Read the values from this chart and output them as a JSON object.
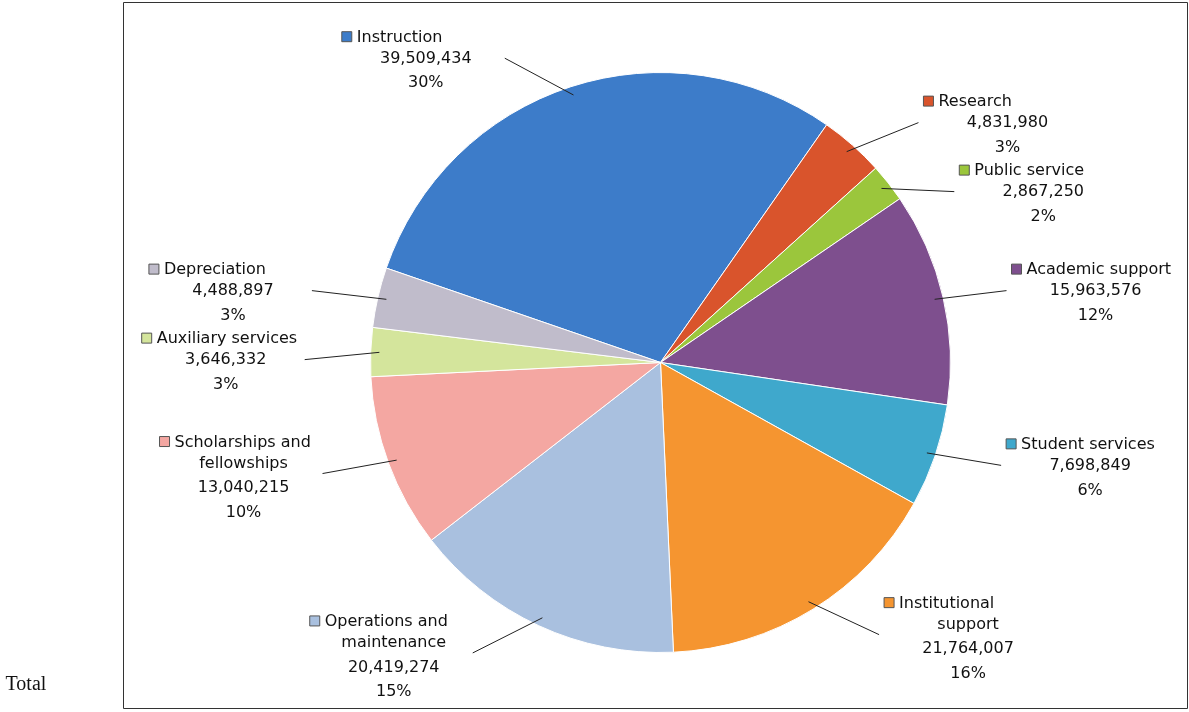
{
  "chart_data": {
    "type": "pie",
    "categories": [
      "Instruction",
      "Research",
      "Public service",
      "Academic support",
      "Student services",
      "Institutional support",
      "Operations and maintenance",
      "Scholarships and fellowships",
      "Auxiliary services",
      "Depreciation"
    ],
    "values": [
      39509434,
      4831980,
      2867250,
      15963576,
      7698849,
      21764007,
      20419274,
      13040215,
      3646332,
      4488897
    ],
    "colors": [
      "#3d7cc9",
      "#d9542c",
      "#9bc63c",
      "#7e4f8e",
      "#3fa8cc",
      "#f59530",
      "#a9c0df",
      "#f4a7a2",
      "#d4e59c",
      "#c0bccb"
    ],
    "value_labels": [
      "39,509,434\n30%",
      "4,831,980\n3%",
      "2,867,250\n2%",
      "15,963,576\n12%",
      "7,698,849\n6%",
      "21,764,007\n16%",
      "20,419,274\n15%",
      "13,040,215\n10%",
      "3,646,332\n3%",
      "4,488,897\n3%"
    ],
    "legend": "right",
    "annotations": [
      "Total"
    ]
  }
}
